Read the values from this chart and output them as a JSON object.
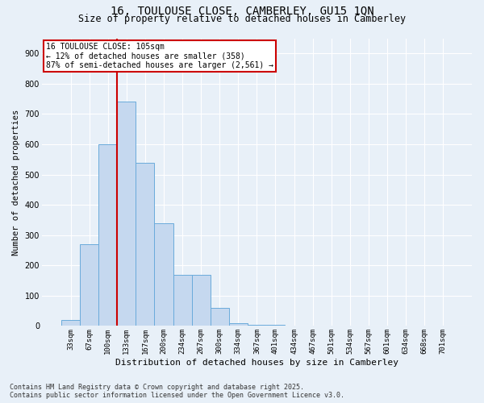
{
  "title_line1": "16, TOULOUSE CLOSE, CAMBERLEY, GU15 1QN",
  "title_line2": "Size of property relative to detached houses in Camberley",
  "xlabel": "Distribution of detached houses by size in Camberley",
  "ylabel": "Number of detached properties",
  "categories": [
    "33sqm",
    "67sqm",
    "100sqm",
    "133sqm",
    "167sqm",
    "200sqm",
    "234sqm",
    "267sqm",
    "300sqm",
    "334sqm",
    "367sqm",
    "401sqm",
    "434sqm",
    "467sqm",
    "501sqm",
    "534sqm",
    "567sqm",
    "601sqm",
    "634sqm",
    "668sqm",
    "701sqm"
  ],
  "values": [
    20,
    270,
    600,
    740,
    540,
    340,
    170,
    170,
    60,
    10,
    5,
    5,
    0,
    0,
    0,
    0,
    0,
    0,
    0,
    0,
    0
  ],
  "bar_color": "#c5d8ef",
  "bar_edge_color": "#6aabdb",
  "vline_x": 2.5,
  "vline_color": "#cc0000",
  "annotation_text": "16 TOULOUSE CLOSE: 105sqm\n← 12% of detached houses are smaller (358)\n87% of semi-detached houses are larger (2,561) →",
  "annotation_box_color": "#ffffff",
  "annotation_box_edge": "#cc0000",
  "ylim": [
    0,
    950
  ],
  "yticks": [
    0,
    100,
    200,
    300,
    400,
    500,
    600,
    700,
    800,
    900
  ],
  "background_color": "#e8f0f8",
  "grid_color": "#ffffff",
  "footer_line1": "Contains HM Land Registry data © Crown copyright and database right 2025.",
  "footer_line2": "Contains public sector information licensed under the Open Government Licence v3.0."
}
